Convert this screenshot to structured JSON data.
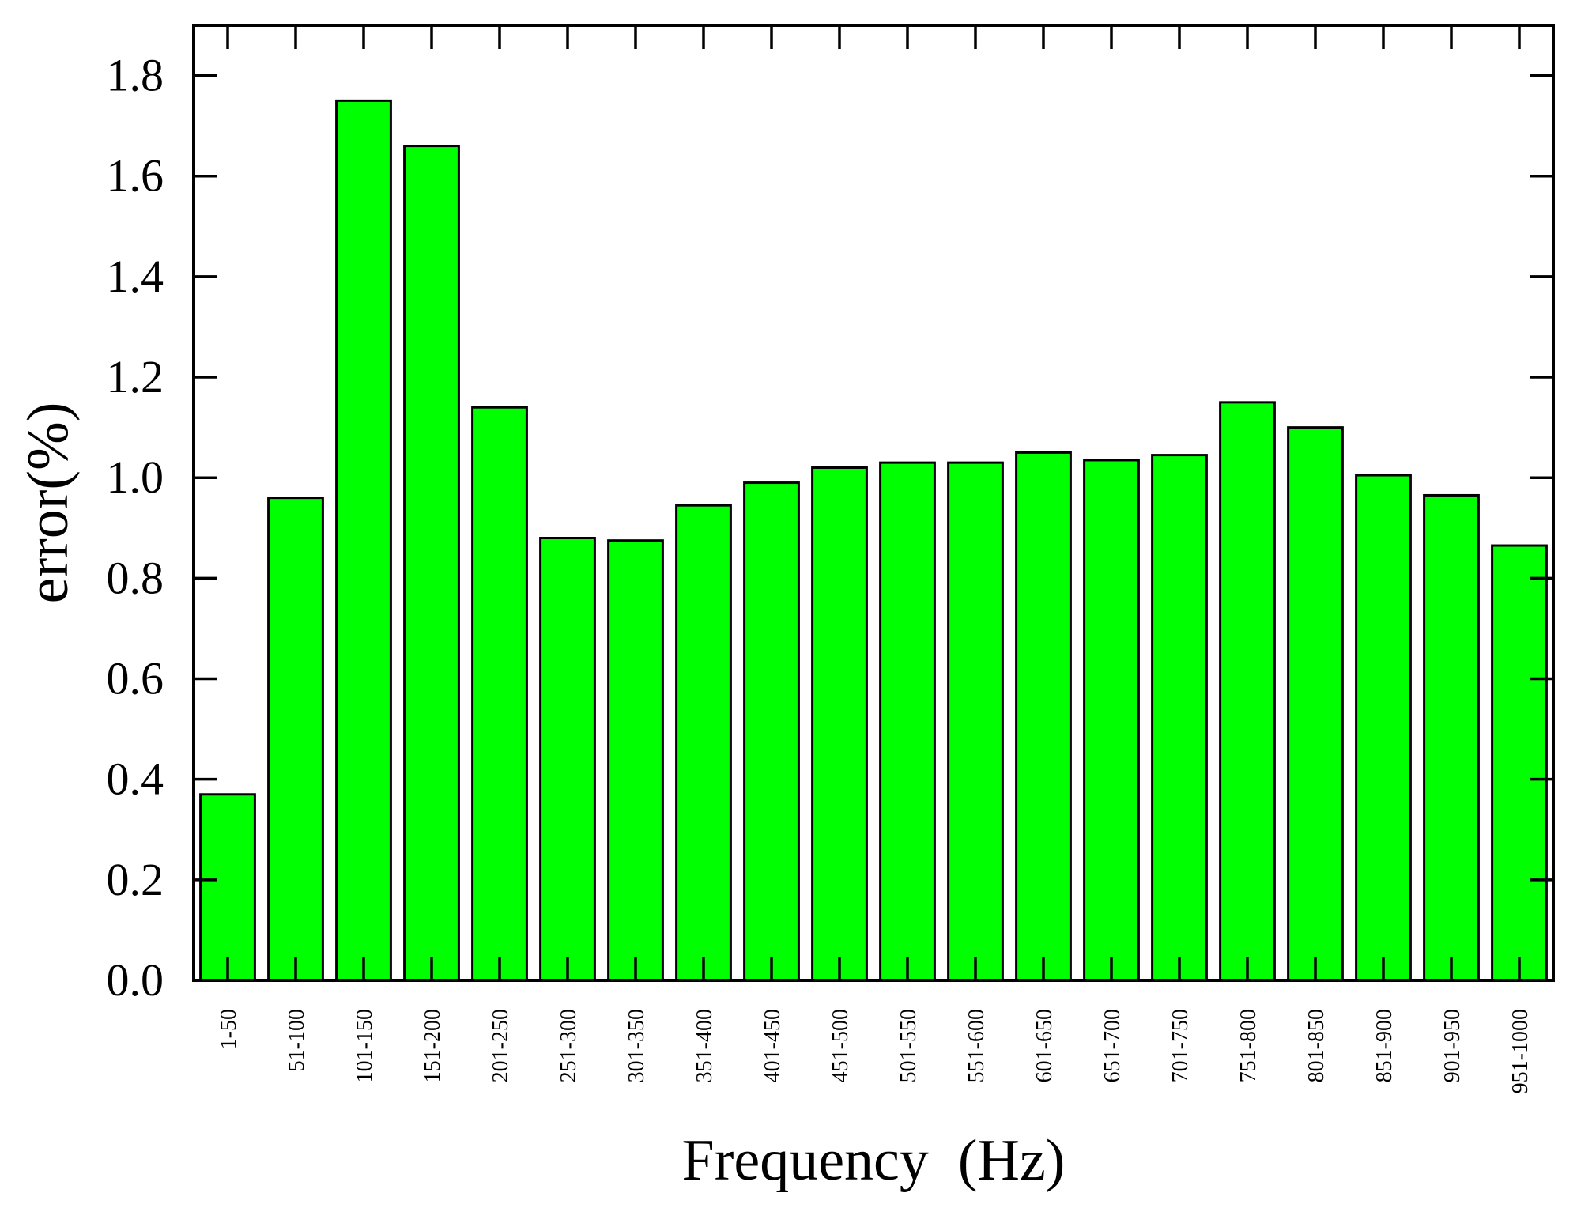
{
  "chart_data": {
    "type": "bar",
    "title": "",
    "xlabel": "Frequency  (Hz)",
    "ylabel": "error(%)",
    "ylim": [
      0,
      1.9
    ],
    "yticks": [
      "0.0",
      "0.2",
      "0.4",
      "0.6",
      "0.8",
      "1.0",
      "1.2",
      "1.4",
      "1.6",
      "1.8"
    ],
    "categories": [
      "1-50",
      "51-100",
      "101-150",
      "151-200",
      "201-250",
      "251-300",
      "301-350",
      "351-400",
      "401-450",
      "451-500",
      "501-550",
      "551-600",
      "601-650",
      "651-700",
      "701-750",
      "751-800",
      "801-850",
      "851-900",
      "901-950",
      "951-1000"
    ],
    "values": [
      0.37,
      0.96,
      1.75,
      1.66,
      1.14,
      0.88,
      0.875,
      0.945,
      0.99,
      1.02,
      1.03,
      1.03,
      1.05,
      1.035,
      1.045,
      1.15,
      1.1,
      1.005,
      0.965,
      0.865
    ],
    "bar_color": "#00ff00",
    "bar_edge_color": "#000000",
    "grid": false,
    "legend": "none"
  }
}
